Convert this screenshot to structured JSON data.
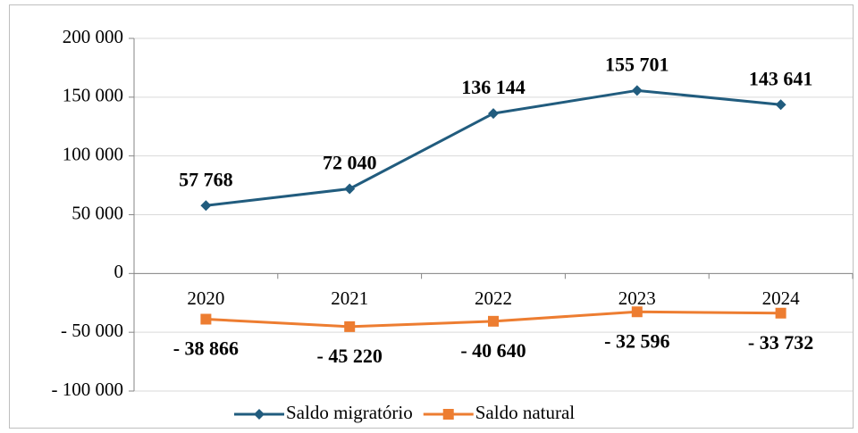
{
  "chart_data": {
    "type": "line",
    "categories": [
      "2020",
      "2021",
      "2022",
      "2023",
      "2024"
    ],
    "series": [
      {
        "name": "Saldo migratório",
        "color": "#215c7e",
        "marker": "diamond",
        "values": [
          57768,
          72040,
          136144,
          155701,
          143641
        ],
        "value_labels": [
          "57 768",
          "72 040",
          "136 144",
          "155 701",
          "143 641"
        ]
      },
      {
        "name": "Saldo natural",
        "color": "#ed7d31",
        "marker": "square",
        "values": [
          -38866,
          -45220,
          -40640,
          -32596,
          -33732
        ],
        "value_labels": [
          "- 38 866",
          "- 45 220",
          "- 40 640",
          "- 32 596",
          "- 33 732"
        ]
      }
    ],
    "ylim": [
      -100000,
      200000
    ],
    "yticks": [
      {
        "value": -100000,
        "label": "- 100 000"
      },
      {
        "value": -50000,
        "label": "- 50 000"
      },
      0,
      {
        "value": 50000,
        "label": "50 000"
      },
      {
        "value": 100000,
        "label": "100 000"
      },
      {
        "value": 150000,
        "label": "150 000"
      },
      {
        "value": 200000,
        "label": "200 000"
      }
    ],
    "grid": true,
    "legend": "bottom"
  }
}
